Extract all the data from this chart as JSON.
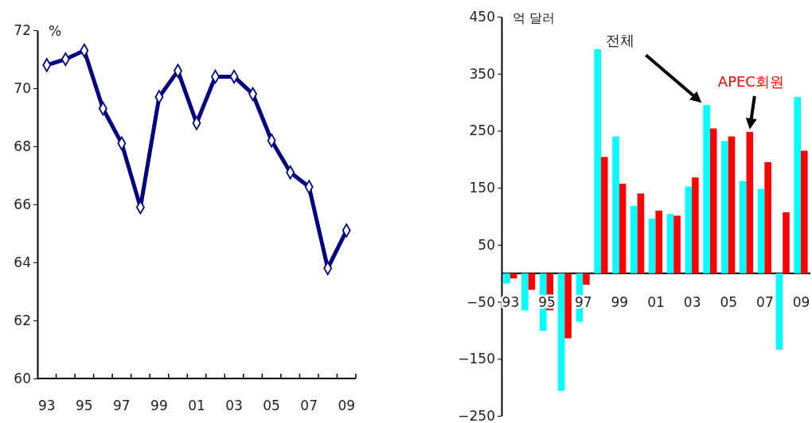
{
  "chart_data": [
    {
      "type": "line",
      "ylabel": "%",
      "categories": [
        "93",
        null,
        "95",
        null,
        "97",
        null,
        "99",
        null,
        "01",
        null,
        "03",
        null,
        "05",
        null,
        "07",
        null,
        "09"
      ],
      "series": [
        {
          "color": "#000080",
          "values": [
            70.8,
            71.0,
            71.3,
            69.3,
            68.1,
            65.9,
            69.7,
            70.6,
            68.8,
            70.4,
            70.4,
            69.8,
            68.2,
            67.1,
            66.6,
            63.8,
            65.1
          ]
        }
      ],
      "ylim": [
        60,
        72
      ],
      "yticks": [
        60,
        62,
        64,
        66,
        68,
        70,
        72
      ],
      "marker": "diamond",
      "line_style": "solid",
      "grid": false
    },
    {
      "type": "bar",
      "ylabel": "억 달러",
      "categories": [
        "93",
        null,
        "95",
        null,
        "97",
        null,
        "99",
        null,
        "01",
        null,
        "03",
        null,
        "05",
        null,
        "07",
        null,
        "09"
      ],
      "series": [
        {
          "name": "전체",
          "color": "#00ffff",
          "values": [
            -18,
            -65,
            -101,
            -206,
            -85,
            393,
            240,
            118,
            96,
            104,
            152,
            295,
            232,
            162,
            148,
            -134,
            309
          ]
        },
        {
          "name": "APEC회원",
          "color": "#ff0000",
          "values": [
            -9,
            -29,
            -65,
            -114,
            -20,
            204,
            157,
            140,
            110,
            101,
            168,
            254,
            240,
            248,
            195,
            107,
            215
          ]
        }
      ],
      "ylim": [
        -250,
        450
      ],
      "yticks": [
        {
          "value": -250,
          "label": "−250"
        },
        {
          "value": -150,
          "label": "−150"
        },
        {
          "value": -50,
          "label": "−50"
        },
        50,
        150,
        250,
        350,
        450
      ],
      "grid": false
    }
  ]
}
